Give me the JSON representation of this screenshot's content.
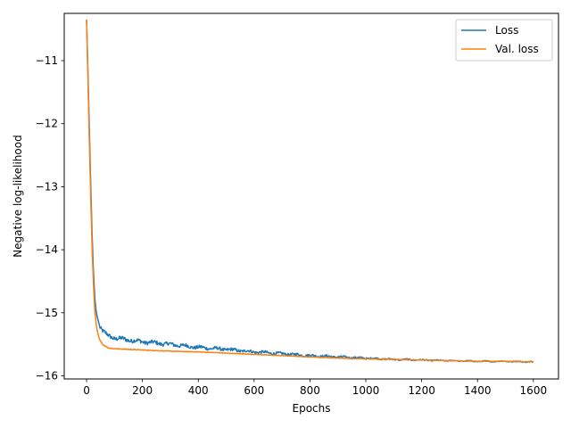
{
  "chart_data": {
    "type": "line",
    "title": "",
    "xlabel": "Epochs",
    "ylabel": "Negative log-likelihood",
    "xlim": [
      -80,
      1690
    ],
    "ylim": [
      -16.05,
      -10.25
    ],
    "xticks": [
      0,
      200,
      400,
      600,
      800,
      1000,
      1200,
      1400,
      1600
    ],
    "yticks": [
      -16,
      -15,
      -14,
      -13,
      -12,
      -11
    ],
    "ytick_labels": [
      "−16",
      "−15",
      "−14",
      "−13",
      "−12",
      "−11"
    ],
    "grid": false,
    "legend_position": "top-right",
    "series": [
      {
        "name": "Loss",
        "color": "#1f77b4",
        "noise": 0.07,
        "x": [
          0,
          5,
          10,
          15,
          20,
          25,
          30,
          35,
          40,
          45,
          50,
          60,
          70,
          80,
          100,
          150,
          200,
          300,
          400,
          500,
          600,
          700,
          800,
          900,
          1000,
          1100,
          1200,
          1300,
          1400,
          1500,
          1600
        ],
        "y": [
          -10.35,
          -11.2,
          -12.1,
          -13.0,
          -13.8,
          -14.4,
          -14.8,
          -15.0,
          -15.1,
          -15.18,
          -15.24,
          -15.3,
          -15.34,
          -15.37,
          -15.4,
          -15.43,
          -15.46,
          -15.5,
          -15.55,
          -15.58,
          -15.62,
          -15.65,
          -15.68,
          -15.7,
          -15.72,
          -15.74,
          -15.75,
          -15.76,
          -15.77,
          -15.77,
          -15.78
        ]
      },
      {
        "name": "Val. loss",
        "color": "#ff7f0e",
        "noise": 0.012,
        "x": [
          0,
          5,
          10,
          15,
          20,
          25,
          30,
          35,
          40,
          45,
          50,
          60,
          70,
          80,
          100,
          150,
          200,
          300,
          400,
          500,
          600,
          700,
          800,
          900,
          1000,
          1100,
          1200,
          1300,
          1400,
          1500,
          1600
        ],
        "y": [
          -10.35,
          -11.3,
          -12.3,
          -13.2,
          -14.0,
          -14.6,
          -15.0,
          -15.2,
          -15.32,
          -15.4,
          -15.45,
          -15.51,
          -15.54,
          -15.56,
          -15.57,
          -15.58,
          -15.59,
          -15.61,
          -15.62,
          -15.64,
          -15.66,
          -15.68,
          -15.7,
          -15.72,
          -15.73,
          -15.74,
          -15.75,
          -15.76,
          -15.77,
          -15.77,
          -15.78
        ]
      }
    ]
  }
}
